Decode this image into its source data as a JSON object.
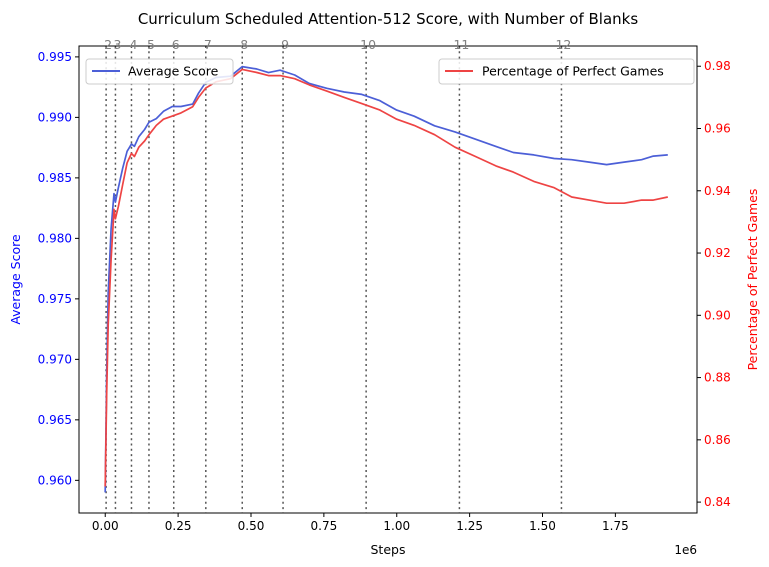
{
  "chart_data": {
    "type": "line",
    "title": "Curriculum Scheduled Attention-512 Score, with Number of Blanks",
    "xlabel": "Steps",
    "x_offset_text": "1e6",
    "x_scale": 1000000,
    "xlim": [
      -90000,
      2030000
    ],
    "x_ticks": [
      0,
      250000,
      500000,
      750000,
      1000000,
      1250000,
      1500000,
      1750000
    ],
    "x_tick_labels": [
      "0.00",
      "0.25",
      "0.50",
      "0.75",
      "1.00",
      "1.25",
      "1.50",
      "1.75"
    ],
    "left_axis": {
      "label": "Average Score",
      "color": "#0000ff",
      "lim": [
        0.9573,
        0.9959
      ],
      "ticks": [
        0.96,
        0.965,
        0.97,
        0.975,
        0.98,
        0.985,
        0.99,
        0.995
      ],
      "tick_labels": [
        "0.960",
        "0.965",
        "0.970",
        "0.975",
        "0.980",
        "0.985",
        "0.990",
        "0.995"
      ]
    },
    "right_axis": {
      "label": "Percentage of Perfect Games",
      "color": "#ff0000",
      "lim": [
        0.8365,
        0.9865
      ],
      "ticks": [
        0.84,
        0.86,
        0.88,
        0.9,
        0.92,
        0.94,
        0.96,
        0.98
      ],
      "tick_labels": [
        "0.84",
        "0.86",
        "0.88",
        "0.90",
        "0.92",
        "0.94",
        "0.96",
        "0.98"
      ]
    },
    "blank_markers": [
      {
        "x": 3000,
        "label": "2"
      },
      {
        "x": 35000,
        "label": "3"
      },
      {
        "x": 90000,
        "label": "4"
      },
      {
        "x": 150000,
        "label": "5"
      },
      {
        "x": 235000,
        "label": "6"
      },
      {
        "x": 345000,
        "label": "7"
      },
      {
        "x": 470000,
        "label": "8"
      },
      {
        "x": 610000,
        "label": "9"
      },
      {
        "x": 895000,
        "label": "10"
      },
      {
        "x": 1215000,
        "label": "11"
      },
      {
        "x": 1565000,
        "label": "12"
      }
    ],
    "grid": false,
    "series": [
      {
        "name": "Average Score",
        "axis": "left",
        "color": "#4c5fd7",
        "legend_position": "top-left",
        "points": [
          [
            0,
            0.959
          ],
          [
            5000,
            0.969
          ],
          [
            10000,
            0.9755
          ],
          [
            20000,
            0.9808
          ],
          [
            30000,
            0.9837
          ],
          [
            35000,
            0.983
          ],
          [
            45000,
            0.9842
          ],
          [
            60000,
            0.9858
          ],
          [
            75000,
            0.9872
          ],
          [
            90000,
            0.9878
          ],
          [
            100000,
            0.9876
          ],
          [
            115000,
            0.9884
          ],
          [
            135000,
            0.989
          ],
          [
            150000,
            0.9896
          ],
          [
            175000,
            0.9899
          ],
          [
            200000,
            0.9905
          ],
          [
            230000,
            0.9909
          ],
          [
            260000,
            0.9909
          ],
          [
            300000,
            0.9911
          ],
          [
            320000,
            0.992
          ],
          [
            345000,
            0.9929
          ],
          [
            380000,
            0.9933
          ],
          [
            430000,
            0.9934
          ],
          [
            470000,
            0.9942
          ],
          [
            520000,
            0.994
          ],
          [
            560000,
            0.9937
          ],
          [
            600000,
            0.9939
          ],
          [
            650000,
            0.9935
          ],
          [
            700000,
            0.9928
          ],
          [
            760000,
            0.9924
          ],
          [
            820000,
            0.9921
          ],
          [
            880000,
            0.9919
          ],
          [
            940000,
            0.9914
          ],
          [
            1000000,
            0.9906
          ],
          [
            1060000,
            0.9901
          ],
          [
            1130000,
            0.9893
          ],
          [
            1200000,
            0.9888
          ],
          [
            1270000,
            0.9882
          ],
          [
            1340000,
            0.9876
          ],
          [
            1400000,
            0.9871
          ],
          [
            1470000,
            0.9869
          ],
          [
            1540000,
            0.9866
          ],
          [
            1600000,
            0.9865
          ],
          [
            1660000,
            0.9863
          ],
          [
            1720000,
            0.9861
          ],
          [
            1780000,
            0.9863
          ],
          [
            1840000,
            0.9865
          ],
          [
            1880000,
            0.9868
          ],
          [
            1930000,
            0.9869
          ]
        ]
      },
      {
        "name": "Percentage of Perfect Games",
        "axis": "right",
        "color": "#ee4444",
        "legend_position": "top-right",
        "points": [
          [
            0,
            0.845
          ],
          [
            5000,
            0.875
          ],
          [
            10000,
            0.897
          ],
          [
            20000,
            0.918
          ],
          [
            30000,
            0.934
          ],
          [
            35000,
            0.931
          ],
          [
            45000,
            0.935
          ],
          [
            60000,
            0.942
          ],
          [
            75000,
            0.949
          ],
          [
            90000,
            0.952
          ],
          [
            100000,
            0.951
          ],
          [
            115000,
            0.954
          ],
          [
            135000,
            0.956
          ],
          [
            150000,
            0.958
          ],
          [
            175000,
            0.961
          ],
          [
            200000,
            0.963
          ],
          [
            230000,
            0.964
          ],
          [
            260000,
            0.965
          ],
          [
            300000,
            0.967
          ],
          [
            320000,
            0.97
          ],
          [
            345000,
            0.973
          ],
          [
            380000,
            0.975
          ],
          [
            430000,
            0.976
          ],
          [
            470000,
            0.979
          ],
          [
            520000,
            0.978
          ],
          [
            560000,
            0.977
          ],
          [
            600000,
            0.977
          ],
          [
            650000,
            0.976
          ],
          [
            700000,
            0.974
          ],
          [
            760000,
            0.972
          ],
          [
            820000,
            0.97
          ],
          [
            880000,
            0.968
          ],
          [
            940000,
            0.966
          ],
          [
            1000000,
            0.963
          ],
          [
            1060000,
            0.961
          ],
          [
            1130000,
            0.958
          ],
          [
            1200000,
            0.954
          ],
          [
            1270000,
            0.951
          ],
          [
            1340000,
            0.948
          ],
          [
            1400000,
            0.946
          ],
          [
            1470000,
            0.943
          ],
          [
            1540000,
            0.941
          ],
          [
            1600000,
            0.938
          ],
          [
            1660000,
            0.937
          ],
          [
            1720000,
            0.936
          ],
          [
            1780000,
            0.936
          ],
          [
            1840000,
            0.937
          ],
          [
            1880000,
            0.937
          ],
          [
            1930000,
            0.938
          ]
        ]
      }
    ]
  }
}
